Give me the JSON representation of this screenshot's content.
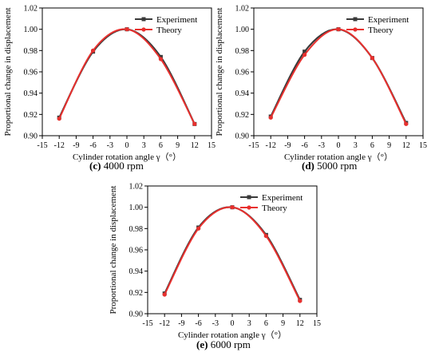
{
  "chart_data": [
    {
      "type": "line",
      "panel": "c",
      "caption_letter": "(c)",
      "caption_text": "4000 rpm",
      "xlabel": "Cylinder rotation angle γ（°）",
      "ylabel": "Proportional change in displacement",
      "xlim": [
        -15,
        15
      ],
      "ylim": [
        0.9,
        1.02
      ],
      "xticks": [
        "-15",
        "-12",
        "-9",
        "-6",
        "-3",
        "0",
        "3",
        "6",
        "9",
        "12",
        "15"
      ],
      "yticks": [
        "0.90",
        "0.92",
        "0.94",
        "0.96",
        "0.98",
        "1.00",
        "1.02"
      ],
      "grid": false,
      "legend_position": "top-right",
      "x": [
        -12,
        -6,
        0,
        6,
        12
      ],
      "series": [
        {
          "name": "Experiment",
          "color": "#3a3a3a",
          "values": [
            0.917,
            0.979,
            1.0,
            0.974,
            0.911
          ]
        },
        {
          "name": "Theory",
          "color": "#e8302e",
          "values": [
            0.916,
            0.98,
            1.0,
            0.972,
            0.911
          ]
        }
      ]
    },
    {
      "type": "line",
      "panel": "d",
      "caption_letter": "(d)",
      "caption_text": "5000 rpm",
      "xlabel": "Cylinder rotation angle γ（°）",
      "ylabel": "Proportional change in displacement",
      "xlim": [
        -15,
        15
      ],
      "ylim": [
        0.9,
        1.02
      ],
      "xticks": [
        "-15",
        "-12",
        "-9",
        "-6",
        "-3",
        "0",
        "3",
        "6",
        "9",
        "12",
        "15"
      ],
      "yticks": [
        "0.90",
        "0.92",
        "0.94",
        "0.96",
        "0.98",
        "1.00",
        "1.02"
      ],
      "grid": false,
      "legend_position": "top-right",
      "x": [
        -12,
        -6,
        0,
        6,
        12
      ],
      "series": [
        {
          "name": "Experiment",
          "color": "#3a3a3a",
          "values": [
            0.918,
            0.979,
            1.0,
            0.973,
            0.912
          ]
        },
        {
          "name": "Theory",
          "color": "#e8302e",
          "values": [
            0.917,
            0.976,
            1.0,
            0.973,
            0.911
          ]
        }
      ]
    },
    {
      "type": "line",
      "panel": "e",
      "caption_letter": "(e)",
      "caption_text": "6000 rpm",
      "xlabel": "Cylinder rotation angle γ（°）",
      "ylabel": "Proportional change in displacement",
      "xlim": [
        -15,
        15
      ],
      "ylim": [
        0.9,
        1.02
      ],
      "xticks": [
        "-15",
        "-12",
        "-9",
        "-6",
        "-3",
        "0",
        "3",
        "6",
        "9",
        "12",
        "15"
      ],
      "yticks": [
        "0.90",
        "0.92",
        "0.94",
        "0.96",
        "0.98",
        "1.00",
        "1.02"
      ],
      "grid": false,
      "legend_position": "top-right",
      "x": [
        -12,
        -6,
        0,
        6,
        12
      ],
      "series": [
        {
          "name": "Experiment",
          "color": "#3a3a3a",
          "values": [
            0.919,
            0.981,
            1.0,
            0.974,
            0.913
          ]
        },
        {
          "name": "Theory",
          "color": "#e8302e",
          "values": [
            0.918,
            0.98,
            1.0,
            0.973,
            0.912
          ]
        }
      ]
    }
  ]
}
